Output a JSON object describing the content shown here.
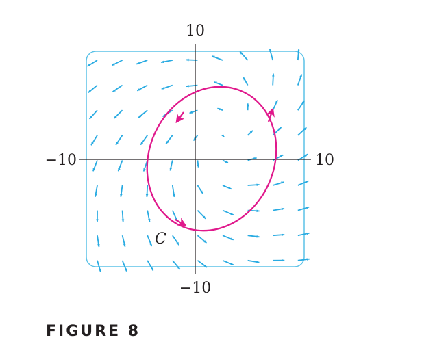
{
  "axes": {
    "x_min_label": "−10",
    "x_max_label": "10",
    "y_min_label": "−10",
    "y_max_label": "10"
  },
  "curve": {
    "label": "C",
    "color": "#e0198c"
  },
  "field_color": "#29abe2",
  "frame_color": "#5bc2e7",
  "caption": "FIGURE 8"
}
